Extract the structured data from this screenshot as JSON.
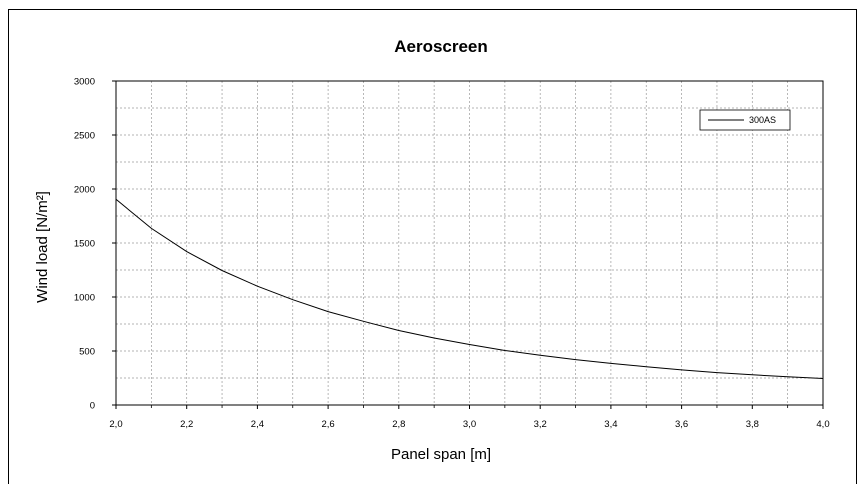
{
  "chart_data": {
    "type": "line",
    "title": "Aeroscreen",
    "xlabel": "Panel span [m]",
    "ylabel": "Wind load [N/m²]",
    "xlim": [
      2.0,
      4.0
    ],
    "ylim": [
      0,
      3000
    ],
    "x_ticks": [
      "2,0",
      "2,2",
      "2,4",
      "2,6",
      "2,8",
      "3,0",
      "3,2",
      "3,4",
      "3,6",
      "3,8",
      "4,0"
    ],
    "y_ticks": [
      "0",
      "500",
      "1000",
      "1500",
      "2000",
      "2500",
      "3000"
    ],
    "grid": true,
    "legend_position": "top-right",
    "series": [
      {
        "name": "300AS",
        "color": "#000000",
        "x": [
          2.0,
          2.1,
          2.2,
          2.3,
          2.4,
          2.5,
          2.6,
          2.7,
          2.8,
          2.9,
          3.0,
          3.1,
          3.2,
          3.3,
          3.4,
          3.5,
          3.6,
          3.7,
          3.8,
          3.9,
          4.0
        ],
        "y": [
          1905,
          1635,
          1420,
          1245,
          1100,
          975,
          865,
          775,
          690,
          620,
          560,
          505,
          460,
          420,
          385,
          355,
          325,
          300,
          280,
          262,
          245
        ]
      }
    ]
  }
}
